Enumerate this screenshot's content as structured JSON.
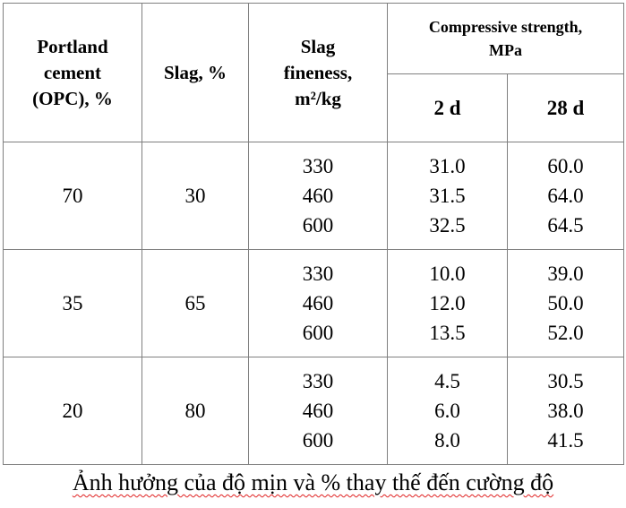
{
  "table": {
    "headers": {
      "opc": [
        "Portland",
        "cement",
        "(OPC), %"
      ],
      "slag": [
        "Slag, %"
      ],
      "fineness": [
        "Slag",
        "fineness,",
        "m²/kg"
      ],
      "strength": [
        "Compressive strength,",
        "MPa"
      ],
      "d2": "2 d",
      "d28": "28 d"
    },
    "groups": [
      {
        "opc": "70",
        "slag": "30",
        "fineness": [
          "330",
          "460",
          "600"
        ],
        "d2": [
          "31.0",
          "31.5",
          "32.5"
        ],
        "d28": [
          "60.0",
          "64.0",
          "64.5"
        ]
      },
      {
        "opc": "35",
        "slag": "65",
        "fineness": [
          "330",
          "460",
          "600"
        ],
        "d2": [
          "10.0",
          "12.0",
          "13.5"
        ],
        "d28": [
          "39.0",
          "50.0",
          "52.0"
        ]
      },
      {
        "opc": "20",
        "slag": "80",
        "fineness": [
          "330",
          "460",
          "600"
        ],
        "d2": [
          "4.5",
          "6.0",
          "8.0"
        ],
        "d28": [
          "30.5",
          "38.0",
          "41.5"
        ]
      }
    ]
  },
  "caption": "Ảnh hưởng của độ mịn và % thay thế đến cường độ"
}
